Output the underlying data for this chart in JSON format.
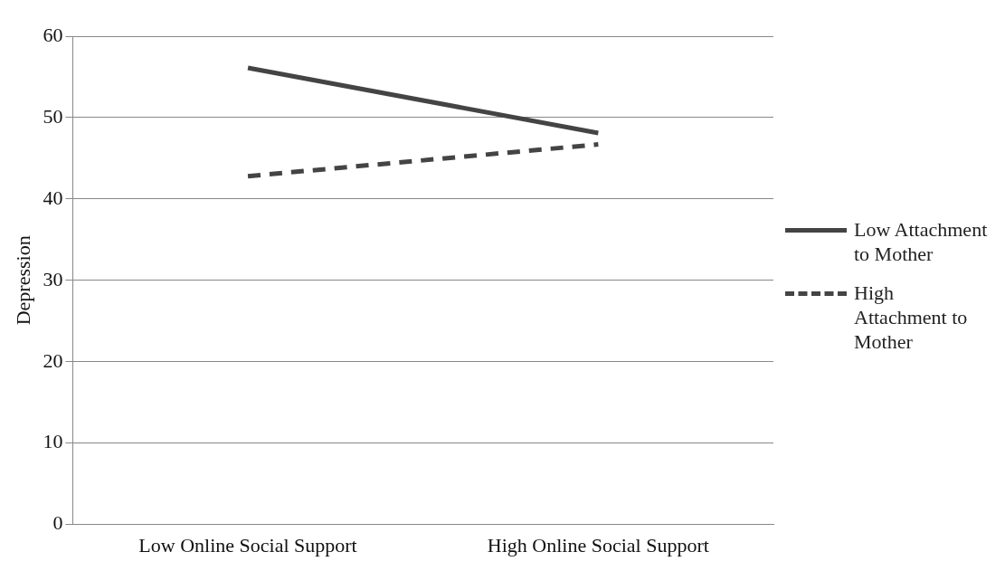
{
  "chart_data": {
    "type": "line",
    "ylabel": "Depression",
    "categories": [
      "Low Online Social Support",
      "High Online Social Support"
    ],
    "series": [
      {
        "name": "Low Attachment to Mother",
        "color": "#444444",
        "values": [
          56.1,
          48.1
        ],
        "line_style": "solid"
      },
      {
        "name": "High Attachment to Mother",
        "color": "#444444",
        "values": [
          42.8,
          46.7
        ],
        "line_style": "dashed"
      }
    ],
    "ylim": [
      0,
      60
    ],
    "yticks": [
      0,
      10,
      20,
      30,
      40,
      50,
      60
    ],
    "grid": "y",
    "legend": "right",
    "marker": "none"
  }
}
